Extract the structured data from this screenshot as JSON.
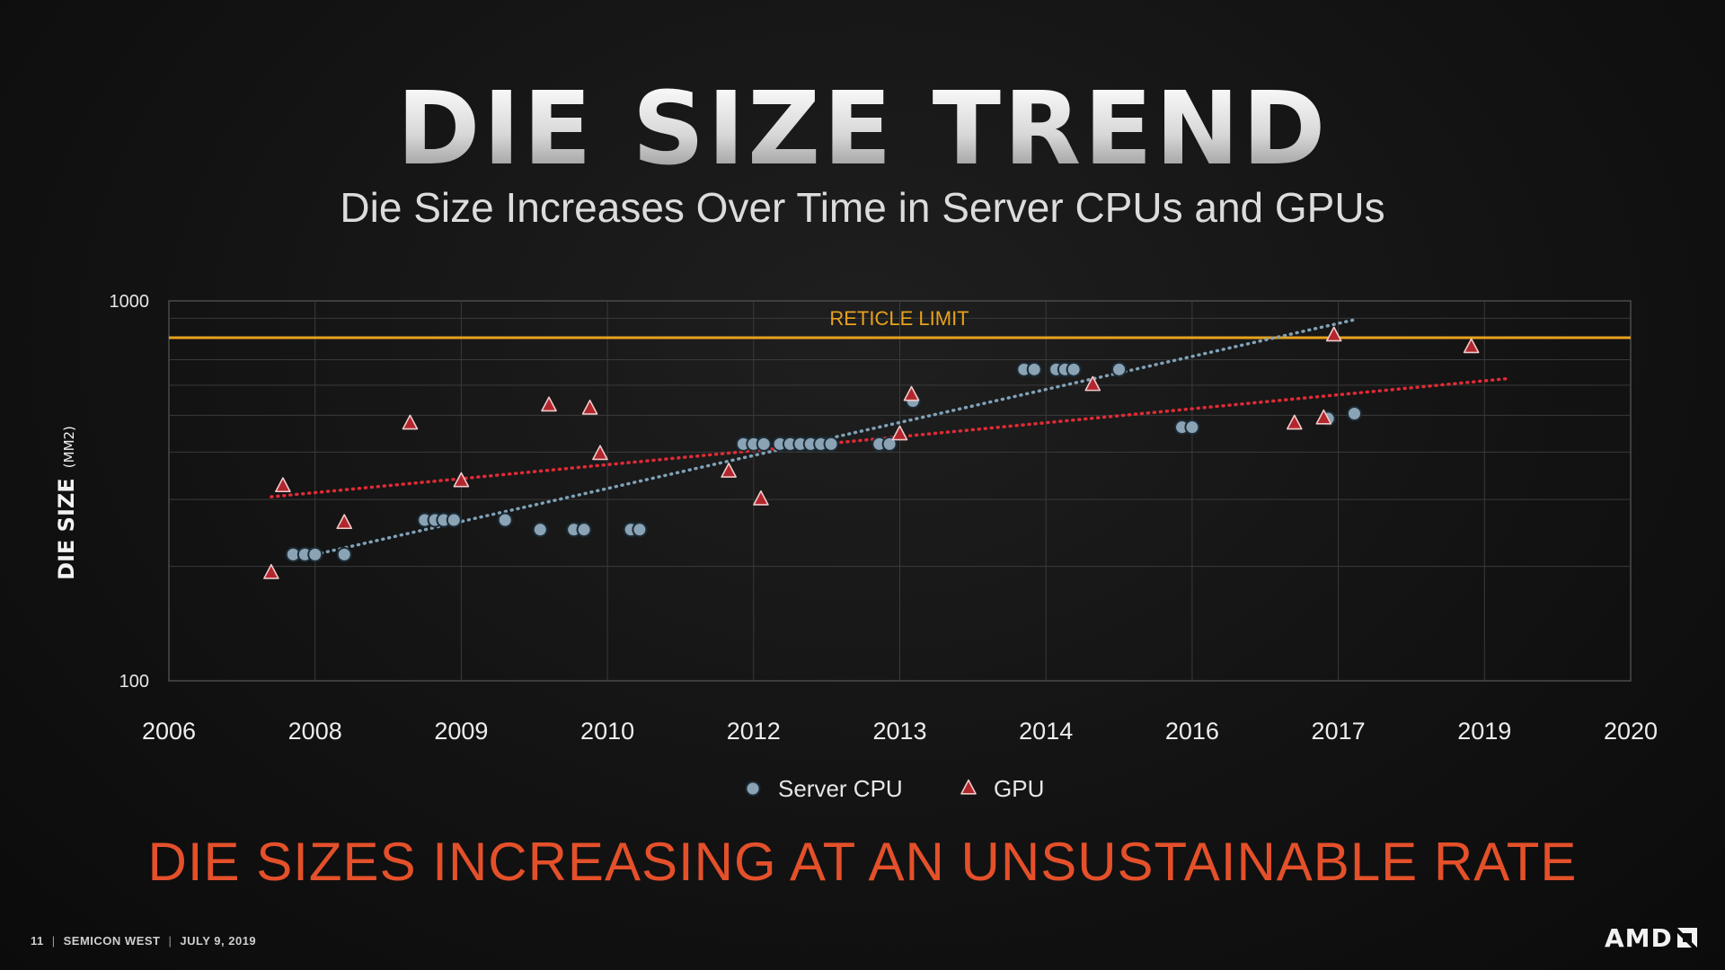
{
  "slide": {
    "title": "DIE SIZE TREND",
    "subtitle": "Die Size Increases Over Time in Server CPUs and GPUs",
    "tagline": "DIE SIZES INCREASING AT AN UNSUSTAINABLE RATE",
    "footer": {
      "page": "11",
      "event": "SEMICON WEST",
      "date": "JULY 9, 2019"
    },
    "logo_text": "AMD",
    "colors": {
      "cpu": "#8aa3b5",
      "gpu": "#b2262e",
      "cpu_trend": "#7fa2b8",
      "gpu_trend": "#e02a35",
      "reticle": "#e8a21d",
      "tagline": "#e4502a"
    }
  },
  "chart_data": {
    "type": "scatter",
    "title": "",
    "xlabel": "",
    "ylabel": "DIE SIZE",
    "ylabel_unit": "(MM2)",
    "y_scale": "log",
    "ylim": [
      100,
      1000
    ],
    "y_ticks": [
      "100",
      "1000"
    ],
    "x_ticks": [
      "2006",
      "2008",
      "2009",
      "2010",
      "2012",
      "2013",
      "2014",
      "2016",
      "2017",
      "2019",
      "2020"
    ],
    "grid": true,
    "legend": "bottom-center",
    "reticle_limit": {
      "label": "RETICLE LIMIT",
      "value": 800
    },
    "series": [
      {
        "name": "Server CPU",
        "marker": "circle",
        "points": [
          {
            "x": 0.85,
            "y": 215
          },
          {
            "x": 0.93,
            "y": 215
          },
          {
            "x": 1.0,
            "y": 215
          },
          {
            "x": 1.2,
            "y": 215
          },
          {
            "x": 1.75,
            "y": 265
          },
          {
            "x": 1.82,
            "y": 265
          },
          {
            "x": 1.88,
            "y": 265
          },
          {
            "x": 1.95,
            "y": 265
          },
          {
            "x": 2.3,
            "y": 265
          },
          {
            "x": 2.54,
            "y": 250
          },
          {
            "x": 2.77,
            "y": 250
          },
          {
            "x": 2.84,
            "y": 250
          },
          {
            "x": 3.16,
            "y": 250
          },
          {
            "x": 3.22,
            "y": 250
          },
          {
            "x": 3.93,
            "y": 420
          },
          {
            "x": 4.0,
            "y": 420
          },
          {
            "x": 4.07,
            "y": 420
          },
          {
            "x": 4.18,
            "y": 420
          },
          {
            "x": 4.25,
            "y": 420
          },
          {
            "x": 4.32,
            "y": 420
          },
          {
            "x": 4.39,
            "y": 420
          },
          {
            "x": 4.46,
            "y": 420
          },
          {
            "x": 4.53,
            "y": 420
          },
          {
            "x": 4.86,
            "y": 420
          },
          {
            "x": 4.93,
            "y": 420
          },
          {
            "x": 5.09,
            "y": 545
          },
          {
            "x": 5.85,
            "y": 660
          },
          {
            "x": 5.92,
            "y": 660
          },
          {
            "x": 6.07,
            "y": 660
          },
          {
            "x": 6.13,
            "y": 660
          },
          {
            "x": 6.19,
            "y": 660
          },
          {
            "x": 6.5,
            "y": 660
          },
          {
            "x": 6.93,
            "y": 465
          },
          {
            "x": 7.0,
            "y": 465
          },
          {
            "x": 7.93,
            "y": 490
          },
          {
            "x": 8.11,
            "y": 505
          }
        ]
      },
      {
        "name": "GPU",
        "marker": "triangle",
        "points": [
          {
            "x": 0.7,
            "y": 192
          },
          {
            "x": 0.78,
            "y": 325
          },
          {
            "x": 1.2,
            "y": 260
          },
          {
            "x": 1.65,
            "y": 475
          },
          {
            "x": 2.0,
            "y": 335
          },
          {
            "x": 2.6,
            "y": 530
          },
          {
            "x": 2.88,
            "y": 520
          },
          {
            "x": 2.95,
            "y": 395
          },
          {
            "x": 3.83,
            "y": 355
          },
          {
            "x": 4.05,
            "y": 300
          },
          {
            "x": 5.0,
            "y": 445
          },
          {
            "x": 5.08,
            "y": 565
          },
          {
            "x": 6.32,
            "y": 600
          },
          {
            "x": 7.7,
            "y": 475
          },
          {
            "x": 7.9,
            "y": 490
          },
          {
            "x": 7.97,
            "y": 810
          },
          {
            "x": 8.91,
            "y": 755
          }
        ]
      }
    ],
    "trendlines": [
      {
        "series": "Server CPU",
        "from": {
          "x": 1.0,
          "y": 215
        },
        "to": {
          "x": 8.1,
          "y": 890
        }
      },
      {
        "series": "GPU",
        "from": {
          "x": 0.7,
          "y": 305
        },
        "to": {
          "x": 9.17,
          "y": 625
        }
      }
    ]
  }
}
